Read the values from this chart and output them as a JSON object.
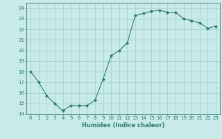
{
  "x": [
    0,
    1,
    2,
    3,
    4,
    5,
    6,
    7,
    8,
    9,
    10,
    11,
    12,
    13,
    14,
    15,
    16,
    17,
    18,
    19,
    20,
    21,
    22,
    23
  ],
  "y": [
    18,
    17,
    15.7,
    15,
    14.3,
    14.8,
    14.8,
    14.8,
    15.3,
    17.3,
    19.5,
    20.0,
    20.7,
    23.3,
    23.5,
    23.7,
    23.8,
    23.6,
    23.6,
    23.0,
    22.8,
    22.6,
    22.1,
    22.3
  ],
  "line_color": "#2d7a6e",
  "marker": "D",
  "marker_size": 2.0,
  "bg_color": "#c8eae8",
  "grid_color": "#9ececa",
  "xlabel": "Humidex (Indice chaleur)",
  "ylabel_ticks": [
    14,
    15,
    16,
    17,
    18,
    19,
    20,
    21,
    22,
    23,
    24
  ],
  "ylim": [
    14,
    24.5
  ],
  "xlim": [
    -0.5,
    23.5
  ],
  "tick_fontsize": 5.0,
  "xlabel_fontsize": 6.0
}
